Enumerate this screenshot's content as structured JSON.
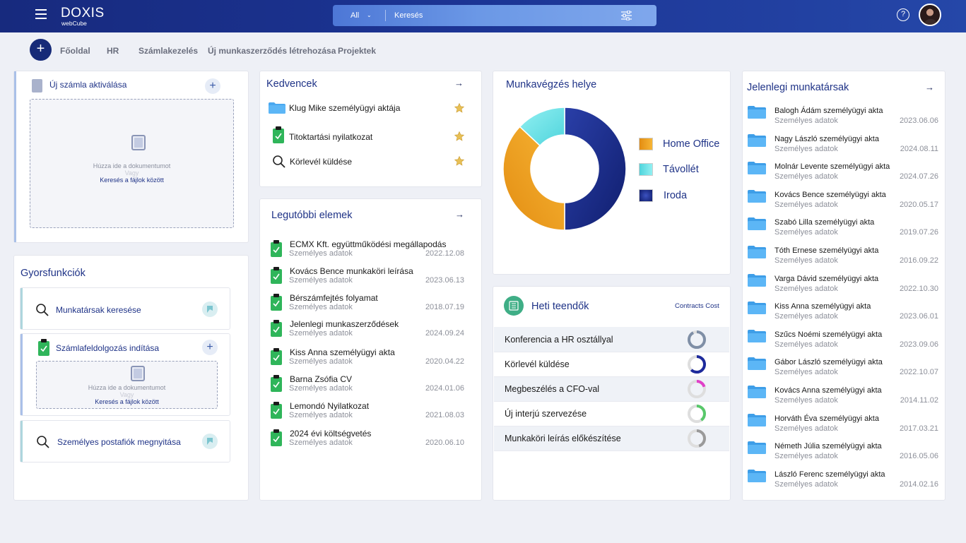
{
  "header": {
    "brand": "DOXIS",
    "brand_sub": "webCube",
    "search_scope": "All",
    "search_placeholder": "Keresés",
    "help_label": "?"
  },
  "nav": {
    "items": [
      "Főoldal",
      "HR",
      "Számlakezelés",
      "Új munkaszerződés létrehozása",
      "Projektek"
    ]
  },
  "invoice_card": {
    "title": "Új számla aktiválása",
    "drop_text": "Húzza ide a dokumentumot",
    "or_text": "Vagy",
    "browse_link": "Keresés a fájlok között"
  },
  "quick_functions": {
    "title": "Gyorsfunkciók",
    "items": [
      {
        "label": "Munkatársak keresése"
      },
      {
        "label": "Számlafeldolgozás indítása",
        "drop_text": "Húzza ide a dokumentumot",
        "or_text": "Vagy",
        "browse_link": "Keresés a fájlok között"
      },
      {
        "label": "Személyes postafiók megnyitása"
      }
    ]
  },
  "favorites": {
    "title": "Kedvencek",
    "arrow": "→",
    "items": [
      {
        "label": "Klug Mike személyügyi aktája",
        "icon": "folder-icon"
      },
      {
        "label": "Titoktartási nyilatkozat",
        "icon": "clipboard-icon"
      },
      {
        "label": "Körlevél küldése",
        "icon": "search-icon"
      }
    ]
  },
  "recent": {
    "title": "Legutóbbi elemek",
    "arrow": "→",
    "items": [
      {
        "title": "ECMX Kft. együttműködési megállapodás",
        "sub": "Személyes adatok",
        "date": "2022.12.08"
      },
      {
        "title": "Kovács Bence munkaköri leírása",
        "sub": "Személyes adatok",
        "date": "2023.06.13"
      },
      {
        "title": "Bérszámfejtés folyamat",
        "sub": "Személyes adatok",
        "date": "2018.07.19"
      },
      {
        "title": "Jelenlegi munkaszerződések",
        "sub": "Személyes adatok",
        "date": "2024.09.24"
      },
      {
        "title": "Kiss Anna személyügyi akta",
        "sub": "Személyes adatok",
        "date": "2020.04.22"
      },
      {
        "title": "Barna Zsófia CV",
        "sub": "Személyes adatok",
        "date": "2024.01.06"
      },
      {
        "title": "Lemondó Nyilatkozat",
        "sub": "Személyes adatok",
        "date": "2021.08.03"
      },
      {
        "title": "2024 évi költségvetés",
        "sub": "Személyes adatok",
        "date": "2020.06.10"
      }
    ]
  },
  "workplace": {
    "title": "Munkavégzés helye",
    "legend": [
      {
        "label": "Home Office",
        "color": "#f0a020"
      },
      {
        "label": "Távollét",
        "color": "#6fe4e8"
      },
      {
        "label": "Iroda",
        "color": "#1c2f8c"
      }
    ]
  },
  "chart_data": {
    "type": "pie",
    "categories": [
      "Iroda",
      "Home Office",
      "Távollét"
    ],
    "values": [
      50,
      37,
      13
    ],
    "colors": [
      "#1c2f8c",
      "#f0a020",
      "#6fe4e8"
    ],
    "title": "Munkavégzés helye",
    "legend_position": "right"
  },
  "tasks": {
    "title": "Heti teendők",
    "link": "Contracts Cost",
    "items": [
      {
        "label": "Konferencia a HR osztállyal",
        "progress": 0.92,
        "color": "#7f8fa6"
      },
      {
        "label": "Körlevél küldése",
        "progress": 0.62,
        "color": "#1d2a9c"
      },
      {
        "label": "Megbeszélés a CFO-val",
        "progress": 0.2,
        "color": "#e040c8"
      },
      {
        "label": "Új interjú szervezése",
        "progress": 0.4,
        "color": "#58c86a"
      },
      {
        "label": "Munkaköri leírás előkészítése",
        "progress": 0.45,
        "color": "#9a9a9a"
      }
    ]
  },
  "colleagues": {
    "title": "Jelenlegi munkatársak",
    "arrow": "→",
    "items": [
      {
        "name": "Balogh Ádám személyügyi akta",
        "sub": "Személyes adatok",
        "date": "2023.06.06"
      },
      {
        "name": "Nagy László személyügyi akta",
        "sub": "Személyes adatok",
        "date": "2024.08.11"
      },
      {
        "name": "Molnár Levente személyügyi akta",
        "sub": "Személyes adatok",
        "date": "2024.07.26"
      },
      {
        "name": "Kovács Bence személyügyi akta",
        "sub": "Személyes adatok",
        "date": "2020.05.17"
      },
      {
        "name": "Szabó Lilla személyügyi akta",
        "sub": "Személyes adatok",
        "date": "2019.07.26"
      },
      {
        "name": "Tóth Ernese személyügyi akta",
        "sub": "Személyes adatok",
        "date": "2016.09.22"
      },
      {
        "name": "Varga Dávid személyügyi akta",
        "sub": "Személyes adatok",
        "date": "2022.10.30"
      },
      {
        "name": "Kiss Anna személyügyi akta",
        "sub": "Személyes adatok",
        "date": "2023.06.01"
      },
      {
        "name": "Szűcs Noémi személyügyi akta",
        "sub": "Személyes adatok",
        "date": "2023.09.06"
      },
      {
        "name": "Gábor László személyügyi akta",
        "sub": "Személyes adatok",
        "date": "2022.10.07"
      },
      {
        "name": "Kovács Anna személyügyi akta",
        "sub": "Személyes adatok",
        "date": "2014.11.02"
      },
      {
        "name": "Horváth Éva személyügyi akta",
        "sub": "Személyes adatok",
        "date": "2017.03.21"
      },
      {
        "name": "Németh Júlia személyügyi akta",
        "sub": "Személyes adatok",
        "date": "2016.05.06"
      },
      {
        "name": "László Ferenc személyügyi akta",
        "sub": "Személyes adatok",
        "date": "2014.02.16"
      }
    ]
  }
}
